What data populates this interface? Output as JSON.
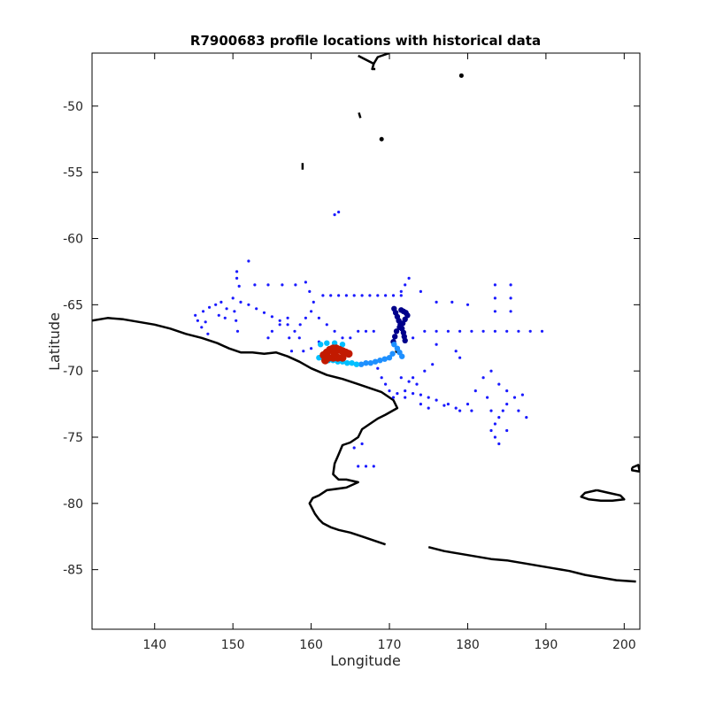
{
  "chart_data": {
    "type": "scatter",
    "title": "R7900683 profile locations with historical data",
    "xlabel": "Longitude",
    "ylabel": "Latitude",
    "xlim": [
      132,
      202
    ],
    "ylim": [
      -89.5,
      -46
    ],
    "xticks": [
      140,
      150,
      160,
      170,
      180,
      190,
      200
    ],
    "yticks": [
      -50,
      -55,
      -60,
      -65,
      -70,
      -75,
      -80,
      -85
    ],
    "grid": false,
    "coastline_color": "#000000",
    "series": [
      {
        "color": "#1a1aff",
        "points": [
          [
            152,
            -61.7
          ],
          [
            150.5,
            -62.5
          ],
          [
            150.5,
            -63
          ],
          [
            150.8,
            -63.6
          ],
          [
            145.2,
            -65.8
          ],
          [
            145.5,
            -66.2
          ],
          [
            146.2,
            -65.5
          ],
          [
            147.0,
            -65.2
          ],
          [
            147.8,
            -65.0
          ],
          [
            148.5,
            -64.8
          ],
          [
            149.2,
            -65.3
          ],
          [
            149.0,
            -66.0
          ],
          [
            148.2,
            -65.8
          ],
          [
            146.5,
            -66.3
          ],
          [
            146.0,
            -66.7
          ],
          [
            146.8,
            -67.2
          ],
          [
            150.0,
            -64.5
          ],
          [
            150.2,
            -65.5
          ],
          [
            150.4,
            -66.2
          ],
          [
            150.6,
            -67.0
          ],
          [
            151.0,
            -64.8
          ],
          [
            152.0,
            -65.0
          ],
          [
            153.0,
            -65.3
          ],
          [
            154.0,
            -65.6
          ],
          [
            155.0,
            -65.9
          ],
          [
            156.0,
            -66.2
          ],
          [
            157.0,
            -66.5
          ],
          [
            152.8,
            -63.5
          ],
          [
            154.5,
            -63.5
          ],
          [
            156.3,
            -63.5
          ],
          [
            158.0,
            -63.5
          ],
          [
            159.3,
            -63.3
          ],
          [
            159.8,
            -64.0
          ],
          [
            160.3,
            -64.8
          ],
          [
            157.0,
            -66.0
          ],
          [
            156.0,
            -66.5
          ],
          [
            155.0,
            -67.0
          ],
          [
            154.5,
            -67.5
          ],
          [
            160.0,
            -65.5
          ],
          [
            159.3,
            -66.0
          ],
          [
            158.6,
            -66.5
          ],
          [
            157.9,
            -67.0
          ],
          [
            157.2,
            -67.5
          ],
          [
            161.5,
            -64.3
          ],
          [
            162.5,
            -64.3
          ],
          [
            163.5,
            -64.3
          ],
          [
            164.5,
            -64.3
          ],
          [
            165.5,
            -64.3
          ],
          [
            166.5,
            -64.3
          ],
          [
            167.5,
            -64.3
          ],
          [
            168.5,
            -64.3
          ],
          [
            169.5,
            -64.3
          ],
          [
            170.5,
            -64.3
          ],
          [
            161.0,
            -66.0
          ],
          [
            162.0,
            -66.5
          ],
          [
            163.0,
            -67.0
          ],
          [
            164.0,
            -67.5
          ],
          [
            163.5,
            -58.0
          ],
          [
            163.0,
            -58.2
          ],
          [
            171.5,
            -64.3
          ],
          [
            172.5,
            -63.0
          ],
          [
            172.0,
            -63.5
          ],
          [
            171.5,
            -64.0
          ],
          [
            173.0,
            -67.5
          ],
          [
            174.5,
            -67.0
          ],
          [
            176.0,
            -67.0
          ],
          [
            177.5,
            -67.0
          ],
          [
            179.0,
            -67.0
          ],
          [
            180.5,
            -67.0
          ],
          [
            182.0,
            -67.0
          ],
          [
            183.5,
            -67.0
          ],
          [
            185.0,
            -67.0
          ],
          [
            186.5,
            -67.0
          ],
          [
            188.0,
            -67.0
          ],
          [
            189.5,
            -67.0
          ],
          [
            174.0,
            -64.0
          ],
          [
            176.0,
            -64.8
          ],
          [
            178.0,
            -64.8
          ],
          [
            180.0,
            -65.0
          ],
          [
            183.5,
            -63.5
          ],
          [
            183.5,
            -64.5
          ],
          [
            183.5,
            -65.5
          ],
          [
            185.5,
            -63.5
          ],
          [
            185.5,
            -64.5
          ],
          [
            185.5,
            -65.5
          ],
          [
            168.5,
            -69.8
          ],
          [
            169.0,
            -70.5
          ],
          [
            169.5,
            -71.0
          ],
          [
            170.0,
            -71.5
          ],
          [
            171.0,
            -71.7
          ],
          [
            172.0,
            -71.5
          ],
          [
            173.0,
            -71.7
          ],
          [
            174.0,
            -71.8
          ],
          [
            175.0,
            -72.0
          ],
          [
            176.0,
            -72.2
          ],
          [
            177.5,
            -72.5
          ],
          [
            178.5,
            -72.8
          ],
          [
            179.0,
            -73.0
          ],
          [
            180.0,
            -72.5
          ],
          [
            181.0,
            -71.5
          ],
          [
            182.0,
            -70.5
          ],
          [
            183.0,
            -70.0
          ],
          [
            184.0,
            -71.0
          ],
          [
            185.0,
            -71.5
          ],
          [
            186.0,
            -72.0
          ],
          [
            187.0,
            -71.8
          ],
          [
            185.0,
            -72.5
          ],
          [
            184.5,
            -73.0
          ],
          [
            184.0,
            -73.5
          ],
          [
            183.5,
            -74.0
          ],
          [
            183.0,
            -74.5
          ],
          [
            178.5,
            -68.5
          ],
          [
            179.0,
            -69.0
          ],
          [
            176.0,
            -68.0
          ],
          [
            175.5,
            -69.5
          ],
          [
            174.5,
            -70.0
          ],
          [
            173.0,
            -70.5
          ],
          [
            174.0,
            -72.5
          ],
          [
            175.0,
            -72.8
          ],
          [
            177.0,
            -72.6
          ],
          [
            180.5,
            -73.0
          ],
          [
            183.5,
            -75.0
          ],
          [
            185.0,
            -74.5
          ],
          [
            184.0,
            -75.5
          ],
          [
            166.0,
            -77.2
          ],
          [
            167.0,
            -77.2
          ],
          [
            168.0,
            -77.2
          ],
          [
            165.5,
            -75.8
          ],
          [
            166.5,
            -75.5
          ],
          [
            163.0,
            -68.0
          ],
          [
            164.0,
            -68.0
          ],
          [
            165.0,
            -67.5
          ],
          [
            161.0,
            -67.8
          ],
          [
            160.0,
            -68.3
          ],
          [
            159.0,
            -68.5
          ],
          [
            158.5,
            -67.5
          ],
          [
            157.5,
            -68.5
          ],
          [
            166.0,
            -67.0
          ],
          [
            167.0,
            -67.0
          ],
          [
            168.0,
            -67.0
          ],
          [
            171.5,
            -70.5
          ],
          [
            172.5,
            -70.8
          ],
          [
            173.5,
            -71.0
          ],
          [
            170.5,
            -72.0
          ],
          [
            172.0,
            -72.0
          ],
          [
            182.5,
            -72.0
          ],
          [
            183.0,
            -73.0
          ],
          [
            186.5,
            -73.0
          ],
          [
            187.5,
            -73.5
          ]
        ]
      },
      {
        "color": "#00008b",
        "points": [
          [
            170.6,
            -65.3
          ],
          [
            170.8,
            -65.6
          ],
          [
            171.0,
            -65.9
          ],
          [
            171.2,
            -66.2
          ],
          [
            171.4,
            -66.5
          ],
          [
            171.6,
            -66.8
          ],
          [
            171.8,
            -67.1
          ],
          [
            171.9,
            -67.4
          ],
          [
            172.0,
            -67.7
          ],
          [
            171.5,
            -65.4
          ],
          [
            171.8,
            -65.5
          ],
          [
            172.1,
            -65.6
          ],
          [
            172.3,
            -65.8
          ],
          [
            172.0,
            -66.1
          ],
          [
            171.7,
            -66.4
          ],
          [
            171.3,
            -66.7
          ],
          [
            170.9,
            -67.0
          ],
          [
            170.7,
            -67.4
          ],
          [
            170.5,
            -67.8
          ]
        ]
      },
      {
        "color": "#1e90ff",
        "points": [
          [
            170.6,
            -68.0
          ],
          [
            171.0,
            -68.3
          ],
          [
            171.3,
            -68.6
          ],
          [
            171.6,
            -68.9
          ],
          [
            170.4,
            -68.7
          ],
          [
            170.0,
            -69.0
          ],
          [
            169.4,
            -69.1
          ],
          [
            168.8,
            -69.2
          ],
          [
            168.2,
            -69.3
          ],
          [
            167.6,
            -69.4
          ],
          [
            167.0,
            -69.4
          ],
          [
            166.4,
            -69.5
          ]
        ]
      },
      {
        "color": "#00bfff",
        "points": [
          [
            165.8,
            -69.5
          ],
          [
            165.2,
            -69.4
          ],
          [
            164.6,
            -69.4
          ],
          [
            164.0,
            -69.3
          ],
          [
            163.4,
            -69.3
          ],
          [
            162.8,
            -69.2
          ],
          [
            162.2,
            -69.2
          ],
          [
            161.6,
            -69.1
          ],
          [
            161.0,
            -69.0
          ],
          [
            161.2,
            -68.0
          ],
          [
            162.0,
            -67.9
          ],
          [
            163.0,
            -67.9
          ],
          [
            164.0,
            -68.0
          ]
        ]
      },
      {
        "color": "#c21a00",
        "points": [
          [
            161.6,
            -68.8
          ],
          [
            162.0,
            -68.6
          ],
          [
            162.4,
            -68.4
          ],
          [
            162.8,
            -68.3
          ],
          [
            163.2,
            -68.3
          ],
          [
            163.6,
            -68.4
          ],
          [
            164.0,
            -68.5
          ],
          [
            164.4,
            -68.6
          ],
          [
            164.8,
            -68.7
          ],
          [
            162.2,
            -69.0
          ],
          [
            162.8,
            -69.0
          ],
          [
            163.4,
            -69.0
          ],
          [
            164.0,
            -69.0
          ],
          [
            161.8,
            -69.2
          ],
          [
            163.0,
            -68.7
          ]
        ]
      }
    ],
    "coastlines": [
      [
        [
          132,
          -66.2
        ],
        [
          134,
          -66.0
        ],
        [
          136,
          -66.1
        ],
        [
          138,
          -66.3
        ],
        [
          140,
          -66.5
        ],
        [
          142,
          -66.8
        ],
        [
          144,
          -67.2
        ],
        [
          146,
          -67.5
        ],
        [
          148,
          -67.9
        ],
        [
          149.5,
          -68.3
        ],
        [
          151,
          -68.6
        ],
        [
          152.5,
          -68.6
        ],
        [
          154,
          -68.7
        ],
        [
          155.5,
          -68.6
        ],
        [
          157,
          -68.9
        ],
        [
          158.5,
          -69.3
        ],
        [
          160,
          -69.8
        ],
        [
          162,
          -70.3
        ],
        [
          164,
          -70.6
        ],
        [
          166,
          -71.0
        ],
        [
          167.5,
          -71.3
        ],
        [
          169,
          -71.6
        ],
        [
          170.5,
          -72.2
        ],
        [
          171.0,
          -72.8
        ],
        [
          169.5,
          -73.3
        ],
        [
          168.5,
          -73.6
        ],
        [
          167.5,
          -74.0
        ],
        [
          166.5,
          -74.4
        ],
        [
          166.0,
          -75.0
        ],
        [
          165.0,
          -75.4
        ],
        [
          164.0,
          -75.6
        ],
        [
          163.5,
          -76.3
        ],
        [
          163.0,
          -77.0
        ],
        [
          162.8,
          -77.8
        ],
        [
          163.5,
          -78.2
        ],
        [
          164.5,
          -78.2
        ],
        [
          166,
          -78.4
        ],
        [
          164.5,
          -78.8
        ],
        [
          162.0,
          -79.0
        ],
        [
          161.0,
          -79.4
        ],
        [
          160.2,
          -79.6
        ],
        [
          159.8,
          -80.0
        ],
        [
          160.5,
          -80.8
        ],
        [
          161.0,
          -81.2
        ],
        [
          161.5,
          -81.5
        ],
        [
          162.5,
          -81.8
        ],
        [
          163.5,
          -82.0
        ],
        [
          165.0,
          -82.2
        ],
        [
          166.5,
          -82.5
        ],
        [
          168.0,
          -82.8
        ],
        [
          169.5,
          -83.1
        ]
      ],
      [
        [
          175.0,
          -83.3
        ],
        [
          177.0,
          -83.6
        ],
        [
          179.0,
          -83.8
        ],
        [
          181.0,
          -84.0
        ],
        [
          183.0,
          -84.2
        ],
        [
          185.0,
          -84.3
        ],
        [
          187.0,
          -84.5
        ],
        [
          189.0,
          -84.7
        ],
        [
          191.0,
          -84.9
        ],
        [
          193.0,
          -85.1
        ],
        [
          195.0,
          -85.4
        ],
        [
          197.0,
          -85.6
        ],
        [
          199.0,
          -85.8
        ],
        [
          201.5,
          -85.9
        ]
      ],
      [
        [
          196.5,
          -79.0
        ],
        [
          198.0,
          -79.2
        ],
        [
          199.5,
          -79.4
        ],
        [
          200.0,
          -79.7
        ],
        [
          198.5,
          -79.8
        ],
        [
          197.0,
          -79.8
        ],
        [
          195.5,
          -79.7
        ],
        [
          194.5,
          -79.5
        ],
        [
          195.0,
          -79.2
        ],
        [
          196.5,
          -79.0
        ]
      ],
      [
        [
          201.0,
          -77.3
        ],
        [
          201.8,
          -77.1
        ],
        [
          202.0,
          -77.6
        ],
        [
          201.0,
          -77.5
        ],
        [
          201.0,
          -77.3
        ]
      ],
      [
        [
          166.0,
          -46.2
        ],
        [
          167.0,
          -46.5
        ],
        [
          168.0,
          -46.8
        ],
        [
          168.5,
          -46.3
        ],
        [
          169.5,
          -46.1
        ],
        [
          170.0,
          -46.0
        ]
      ],
      [
        [
          168.0,
          -46.8
        ],
        [
          167.8,
          -47.2
        ],
        [
          168.2,
          -47.2
        ]
      ],
      [
        [
          158.9,
          -54.3
        ],
        [
          158.9,
          -54.8
        ]
      ],
      [
        [
          166.1,
          -50.5
        ],
        [
          166.3,
          -50.9
        ]
      ]
    ],
    "islands": [
      [
        179.2,
        -47.7
      ],
      [
        169.0,
        -52.5
      ],
      [
        171.0,
        -68.5
      ]
    ]
  }
}
